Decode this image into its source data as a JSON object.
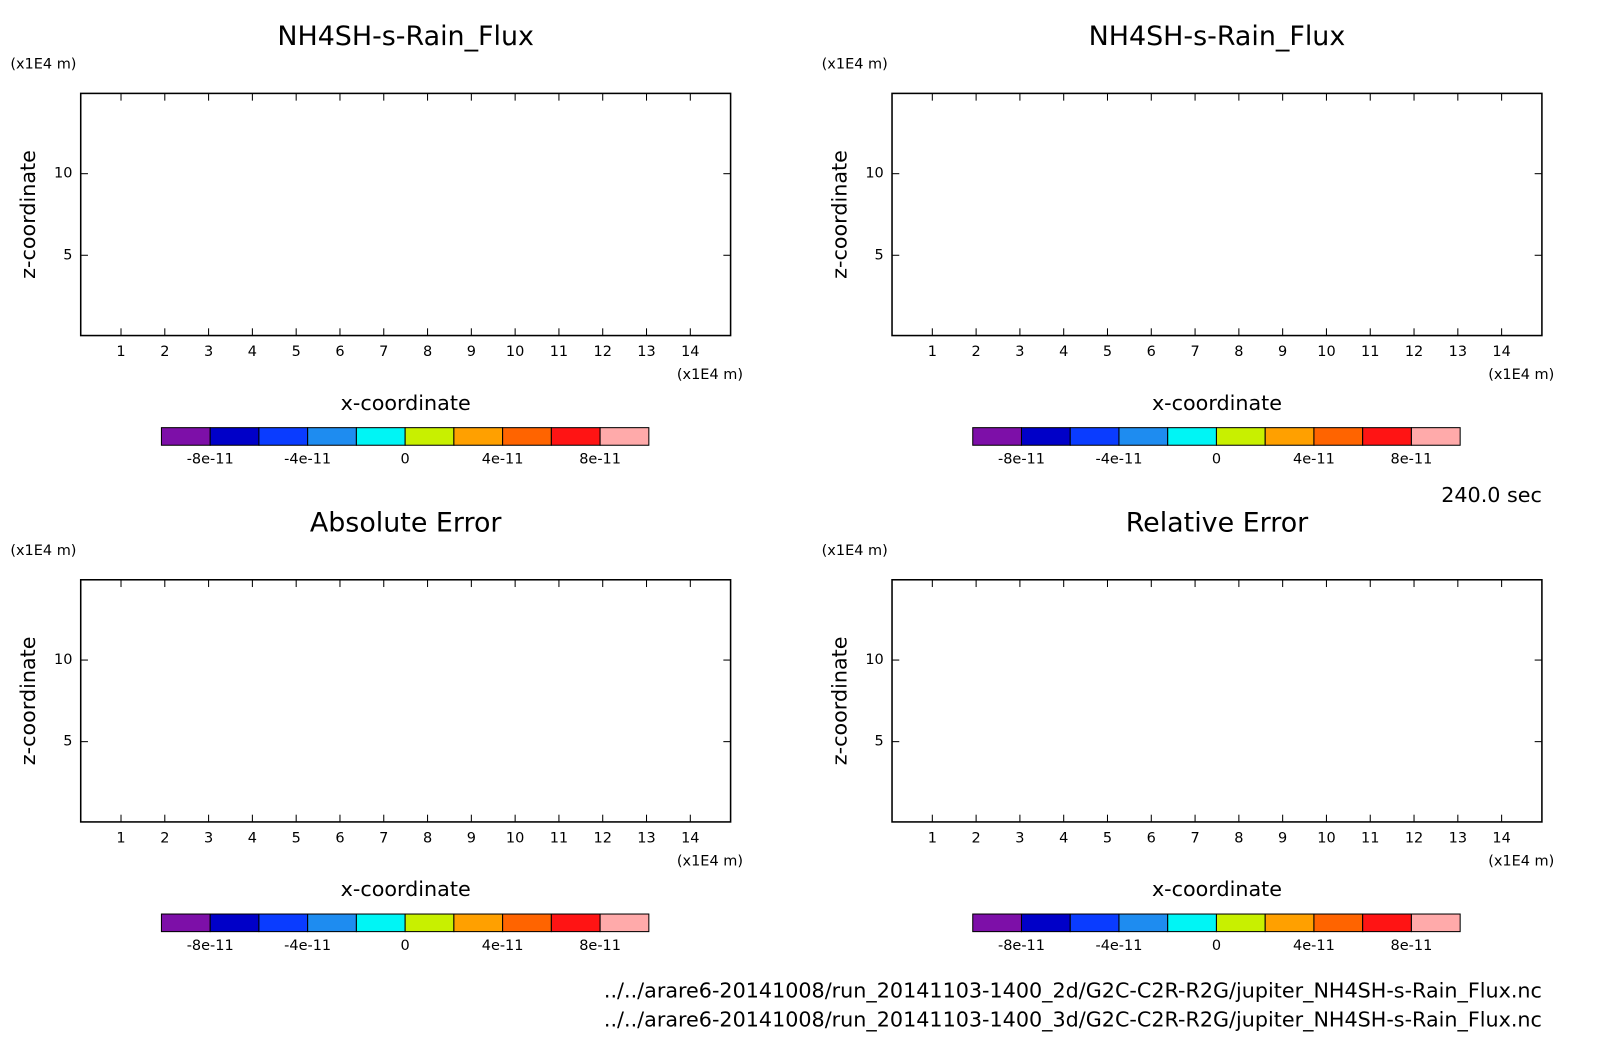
{
  "chart_data": [
    {
      "type": "contour",
      "title": "NH4SH-s-Rain_Flux",
      "x_label": "x-coordinate",
      "y_label": "z-coordinate",
      "x_unit": "(x1E4 m)",
      "y_unit": "(x1E4 m)",
      "xlim": [
        0.08,
        14.92
      ],
      "ylim": [
        0.08,
        14.92
      ],
      "xticks": [
        1,
        2,
        3,
        4,
        5,
        6,
        7,
        8,
        9,
        10,
        11,
        12,
        13,
        14
      ],
      "yticks": [
        5,
        10
      ],
      "colorbar": {
        "colors": [
          "#7d0fa8",
          "#0000c8",
          "#0a3cff",
          "#1e8cf0",
          "#00f5f5",
          "#c8f000",
          "#ffa000",
          "#ff6400",
          "#ff1414",
          "#ffaaaa"
        ],
        "clim": [
          -1e-10,
          1e-10
        ],
        "ticks": [
          -8e-11,
          -4e-11,
          0,
          4e-11,
          8e-11
        ]
      }
    },
    {
      "type": "contour",
      "title": "NH4SH-s-Rain_Flux",
      "x_label": "x-coordinate",
      "y_label": "z-coordinate",
      "x_unit": "(x1E4 m)",
      "y_unit": "(x1E4 m)",
      "xlim": [
        0.08,
        14.92
      ],
      "ylim": [
        0.08,
        14.92
      ],
      "xticks": [
        1,
        2,
        3,
        4,
        5,
        6,
        7,
        8,
        9,
        10,
        11,
        12,
        13,
        14
      ],
      "yticks": [
        5,
        10
      ],
      "colorbar": {
        "colors": [
          "#7d0fa8",
          "#0000c8",
          "#0a3cff",
          "#1e8cf0",
          "#00f5f5",
          "#c8f000",
          "#ffa000",
          "#ff6400",
          "#ff1414",
          "#ffaaaa"
        ],
        "clim": [
          -1e-10,
          1e-10
        ],
        "ticks": [
          -8e-11,
          -4e-11,
          0,
          4e-11,
          8e-11
        ]
      }
    },
    {
      "type": "contour",
      "title": "Absolute Error",
      "x_label": "x-coordinate",
      "y_label": "z-coordinate",
      "x_unit": "(x1E4 m)",
      "y_unit": "(x1E4 m)",
      "xlim": [
        0.08,
        14.92
      ],
      "ylim": [
        0.08,
        14.92
      ],
      "xticks": [
        1,
        2,
        3,
        4,
        5,
        6,
        7,
        8,
        9,
        10,
        11,
        12,
        13,
        14
      ],
      "yticks": [
        5,
        10
      ],
      "colorbar": {
        "colors": [
          "#7d0fa8",
          "#0000c8",
          "#0a3cff",
          "#1e8cf0",
          "#00f5f5",
          "#c8f000",
          "#ffa000",
          "#ff6400",
          "#ff1414",
          "#ffaaaa"
        ],
        "clim": [
          -1e-10,
          1e-10
        ],
        "ticks": [
          -8e-11,
          -4e-11,
          0,
          4e-11,
          8e-11
        ]
      }
    },
    {
      "type": "contour",
      "title": "Relative Error",
      "x_label": "x-coordinate",
      "y_label": "z-coordinate",
      "x_unit": "(x1E4 m)",
      "y_unit": "(x1E4 m)",
      "xlim": [
        0.08,
        14.92
      ],
      "ylim": [
        0.08,
        14.92
      ],
      "xticks": [
        1,
        2,
        3,
        4,
        5,
        6,
        7,
        8,
        9,
        10,
        11,
        12,
        13,
        14
      ],
      "yticks": [
        5,
        10
      ],
      "colorbar": {
        "colors": [
          "#7d0fa8",
          "#0000c8",
          "#0a3cff",
          "#1e8cf0",
          "#00f5f5",
          "#c8f000",
          "#ffa000",
          "#ff6400",
          "#ff1414",
          "#ffaaaa"
        ],
        "clim": [
          -1e-10,
          1e-10
        ],
        "ticks": [
          -8e-11,
          -4e-11,
          0,
          4e-11,
          8e-11
        ]
      }
    }
  ],
  "time_label": "240.0 sec",
  "file_paths": [
    "../../arare6-20141008/run_20141103-1400_2d/G2C-C2R-R2G/jupiter_NH4SH-s-Rain_Flux.nc",
    "../../arare6-20141008/run_20141103-1400_3d/G2C-C2R-R2G/jupiter_NH4SH-s-Rain_Flux.nc"
  ]
}
